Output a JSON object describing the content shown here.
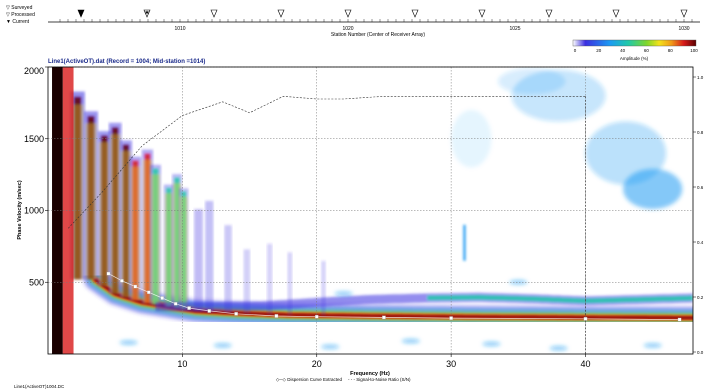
{
  "header": {
    "legend_items": [
      {
        "label": "Surveyed",
        "symbol": "∇"
      },
      {
        "label": "Processed",
        "symbol": "∇"
      },
      {
        "label": "Current",
        "symbol": "▼"
      }
    ],
    "station_axis_label": "Station Number (Center of Receiver Array)",
    "station_ticks": [
      "1010",
      "1020",
      "1025",
      "1030"
    ]
  },
  "colorbar": {
    "ticks": [
      "0",
      "20",
      "40",
      "60",
      "80",
      "100"
    ],
    "label": "Amplitude (%)"
  },
  "plot": {
    "title": "Line1(ActiveOT).dat (Record = 1004; Mid-station =1014)",
    "footer_left": "Line1(ActiveOT)1004.DC",
    "legend": "Dispersion Curve Extracted",
    "legend2": "Signal-to-Noise Ratio (S/N)"
  },
  "chart_data": {
    "type": "heatmap",
    "title": "Line1(ActiveOT).dat (Record = 1004; Mid-station =1014)",
    "xlabel": "Frequency (Hz)",
    "ylabel": "Phase Velocity (m/sec)",
    "xlim": [
      0,
      48
    ],
    "ylim": [
      0,
      2000
    ],
    "x_ticks": [
      10,
      20,
      30,
      40
    ],
    "y_ticks": [
      500,
      1000,
      1500,
      2000
    ],
    "right_ticks": [
      "1.0",
      "0.8",
      "0.6",
      "0.4",
      "0.2",
      "0.0"
    ],
    "right_axis_range": [
      0,
      1
    ],
    "grid": true,
    "colormap": [
      "#ffffff",
      "#3b2ee0",
      "#1c9af2",
      "#20c9a8",
      "#7fd62a",
      "#f3e21b",
      "#f09a18",
      "#d81a1a",
      "#5a0000"
    ],
    "dispersion_curve": {
      "x": [
        4.5,
        5.5,
        6.5,
        7.5,
        8.5,
        9.5,
        10.5,
        12,
        14,
        17,
        20,
        25,
        30,
        40,
        47
      ],
      "y": [
        560,
        510,
        470,
        430,
        390,
        350,
        320,
        300,
        280,
        265,
        260,
        255,
        250,
        245,
        240
      ]
    },
    "signal_to_noise": {
      "x": [
        1.5,
        4,
        7,
        10,
        13,
        15,
        17.5,
        20,
        22,
        25,
        30,
        35,
        40
      ],
      "y": [
        0.45,
        0.58,
        0.75,
        0.86,
        0.91,
        0.87,
        0.93,
        0.92,
        0.92,
        0.93,
        0.93,
        0.93,
        0.93
      ]
    },
    "energy_bands": [
      {
        "x": [
          3.5,
          5,
          7,
          9,
          11,
          14,
          18,
          24,
          30,
          40,
          48
        ],
        "y": [
          520,
          420,
          360,
          330,
          300,
          285,
          272,
          265,
          260,
          255,
          252
        ],
        "intensity": 1.0
      },
      {
        "x": [
          8,
          12,
          16,
          20,
          24,
          28,
          32,
          36,
          40,
          44,
          48
        ],
        "y": [
          330,
          330,
          335,
          360,
          380,
          390,
          395,
          385,
          370,
          380,
          390
        ],
        "intensity": 0.35
      }
    ]
  }
}
